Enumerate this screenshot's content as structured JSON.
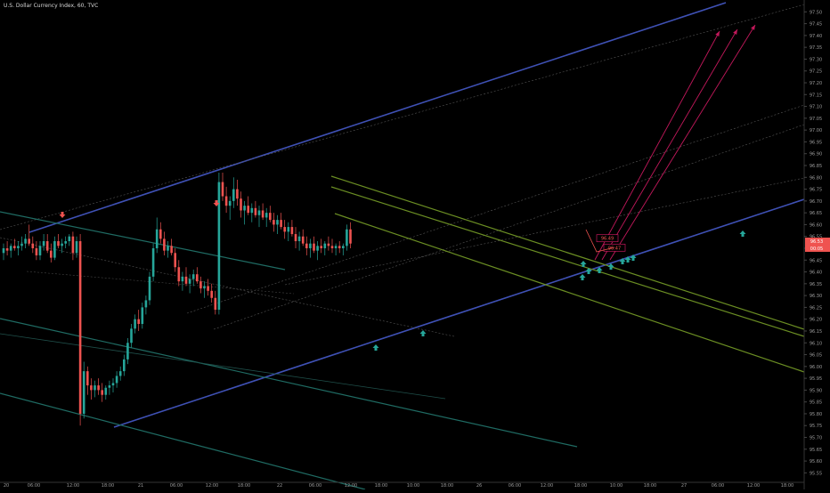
{
  "header": {
    "title": "U.S. Dollar Currency Index, 60, TVC"
  },
  "chart_data": {
    "type": "candlestick",
    "title": "U.S. Dollar Currency Index, 60, TVC",
    "x_ticks": [
      "20",
      "06:00",
      "12:00",
      "18:00",
      "21",
      "06:00",
      "12:00",
      "18:00",
      "22",
      "06:00",
      "12:00",
      "18:00",
      "10:00",
      "18:00",
      "26",
      "06:00",
      "12:00",
      "18:00",
      "10:00",
      "18:00",
      "27",
      "06:00",
      "12:00",
      "18:00"
    ],
    "y_ticks": [
      97.5,
      97.45,
      97.4,
      97.35,
      97.3,
      97.25,
      97.2,
      97.15,
      97.1,
      97.05,
      97.0,
      96.95,
      96.9,
      96.85,
      96.8,
      96.75,
      96.7,
      96.65,
      96.6,
      96.55,
      96.5,
      96.45,
      96.4,
      96.35,
      96.3,
      96.25,
      96.2,
      96.15,
      96.1,
      96.05,
      96.0,
      95.95,
      95.9,
      95.85,
      95.8,
      95.75,
      95.7,
      95.65,
      95.6,
      95.55
    ],
    "ylim": [
      95.51,
      97.52
    ],
    "price_labels": [
      {
        "value": 96.53,
        "text": "96.53",
        "color": "#ef5350"
      },
      {
        "value": 96.5,
        "text": "00:05",
        "color": "#ef5350"
      }
    ],
    "annotations": [
      {
        "text": "96.49",
        "x": 671,
        "y": 96.535
      },
      {
        "text": "96.47",
        "x": 679,
        "y": 96.495
      }
    ],
    "colors": {
      "up": "#26a69a",
      "down": "#ef5350",
      "channel": "#3f51b5",
      "green_channel": "#6b8e23",
      "teal": "#1f6b63",
      "target_arrow": "#c2185b"
    },
    "candles": [
      [
        96.48,
        96.52,
        96.45,
        96.5
      ],
      [
        96.5,
        96.53,
        96.47,
        96.49
      ],
      [
        96.49,
        96.52,
        96.46,
        96.51
      ],
      [
        96.51,
        96.54,
        96.49,
        96.5
      ],
      [
        96.5,
        96.53,
        96.47,
        96.51
      ],
      [
        96.51,
        96.55,
        96.49,
        96.52
      ],
      [
        96.52,
        96.56,
        96.5,
        96.54
      ],
      [
        96.54,
        96.6,
        96.51,
        96.52
      ],
      [
        96.52,
        96.55,
        96.48,
        96.5
      ],
      [
        96.5,
        96.53,
        96.45,
        96.47
      ],
      [
        96.47,
        96.53,
        96.45,
        96.51
      ],
      [
        96.51,
        96.56,
        96.49,
        96.53
      ],
      [
        96.53,
        96.56,
        96.48,
        96.49
      ],
      [
        96.49,
        96.52,
        96.44,
        96.46
      ],
      [
        96.46,
        96.55,
        96.45,
        96.53
      ],
      [
        96.53,
        96.56,
        96.5,
        96.51
      ],
      [
        96.51,
        96.54,
        96.48,
        96.52
      ],
      [
        96.52,
        96.55,
        96.5,
        96.53
      ],
      [
        96.53,
        96.56,
        96.51,
        96.55
      ],
      [
        96.55,
        96.57,
        96.45,
        96.48
      ],
      [
        96.48,
        96.55,
        96.46,
        96.53
      ],
      [
        96.53,
        96.56,
        95.75,
        95.8
      ],
      [
        95.8,
        96.02,
        95.78,
        95.98
      ],
      [
        95.98,
        96.0,
        95.88,
        95.92
      ],
      [
        95.92,
        95.95,
        95.86,
        95.9
      ],
      [
        95.9,
        95.94,
        95.87,
        95.92
      ],
      [
        95.92,
        95.95,
        95.88,
        95.9
      ],
      [
        95.9,
        95.93,
        95.85,
        95.88
      ],
      [
        95.88,
        95.92,
        95.86,
        95.91
      ],
      [
        95.91,
        95.94,
        95.88,
        95.92
      ],
      [
        95.92,
        95.95,
        95.89,
        95.93
      ],
      [
        95.93,
        95.98,
        95.91,
        95.96
      ],
      [
        95.96,
        96.0,
        95.94,
        95.98
      ],
      [
        95.98,
        96.05,
        95.96,
        96.03
      ],
      [
        96.03,
        96.12,
        96.01,
        96.1
      ],
      [
        96.1,
        96.18,
        96.08,
        96.16
      ],
      [
        96.16,
        96.22,
        96.14,
        96.2
      ],
      [
        96.2,
        96.24,
        96.15,
        96.18
      ],
      [
        96.18,
        96.27,
        96.16,
        96.25
      ],
      [
        96.25,
        96.3,
        96.22,
        96.28
      ],
      [
        96.28,
        96.4,
        96.26,
        96.38
      ],
      [
        96.38,
        96.52,
        96.36,
        96.5
      ],
      [
        96.5,
        96.63,
        96.48,
        96.58
      ],
      [
        96.58,
        96.61,
        96.52,
        96.54
      ],
      [
        96.54,
        96.57,
        96.47,
        96.49
      ],
      [
        96.49,
        96.53,
        96.46,
        96.51
      ],
      [
        96.51,
        96.54,
        96.47,
        96.48
      ],
      [
        96.48,
        96.5,
        96.4,
        96.42
      ],
      [
        96.42,
        96.45,
        96.34,
        96.36
      ],
      [
        96.36,
        96.4,
        96.32,
        96.38
      ],
      [
        96.38,
        96.42,
        96.34,
        96.35
      ],
      [
        96.35,
        96.39,
        96.31,
        96.37
      ],
      [
        96.37,
        96.41,
        96.34,
        96.39
      ],
      [
        96.39,
        96.42,
        96.35,
        96.36
      ],
      [
        96.36,
        96.38,
        96.31,
        96.33
      ],
      [
        96.33,
        96.36,
        96.29,
        96.34
      ],
      [
        96.34,
        96.37,
        96.3,
        96.32
      ],
      [
        96.32,
        96.35,
        96.27,
        96.29
      ],
      [
        96.29,
        96.32,
        96.22,
        96.24
      ],
      [
        96.24,
        96.82,
        96.22,
        96.78
      ],
      [
        96.78,
        96.82,
        96.7,
        96.72
      ],
      [
        96.72,
        96.76,
        96.65,
        96.68
      ],
      [
        96.68,
        96.72,
        96.62,
        96.7
      ],
      [
        96.7,
        96.8,
        96.67,
        96.75
      ],
      [
        96.75,
        96.79,
        96.68,
        96.71
      ],
      [
        96.71,
        96.74,
        96.63,
        96.66
      ],
      [
        96.66,
        96.7,
        96.6,
        96.68
      ],
      [
        96.68,
        96.72,
        96.64,
        96.65
      ],
      [
        96.65,
        96.69,
        96.61,
        96.67
      ],
      [
        96.67,
        96.7,
        96.63,
        96.64
      ],
      [
        96.64,
        96.68,
        96.59,
        96.66
      ],
      [
        96.66,
        96.69,
        96.62,
        96.63
      ],
      [
        96.63,
        96.67,
        96.59,
        96.65
      ],
      [
        96.65,
        96.68,
        96.61,
        96.62
      ],
      [
        96.62,
        96.65,
        96.57,
        96.6
      ],
      [
        96.6,
        96.64,
        96.56,
        96.62
      ],
      [
        96.62,
        96.65,
        96.58,
        96.59
      ],
      [
        96.59,
        96.62,
        96.54,
        96.57
      ],
      [
        96.57,
        96.61,
        96.53,
        96.59
      ],
      [
        96.59,
        96.62,
        96.55,
        96.56
      ],
      [
        96.56,
        96.59,
        96.5,
        96.53
      ],
      [
        96.53,
        96.57,
        96.49,
        96.55
      ],
      [
        96.55,
        96.58,
        96.51,
        96.52
      ],
      [
        96.52,
        96.55,
        96.47,
        96.5
      ],
      [
        96.5,
        96.54,
        96.46,
        96.52
      ],
      [
        96.52,
        96.55,
        96.48,
        96.49
      ],
      [
        96.49,
        96.53,
        96.45,
        96.51
      ],
      [
        96.51,
        96.54,
        96.48,
        96.5
      ],
      [
        96.5,
        96.53,
        96.47,
        96.52
      ],
      [
        96.52,
        96.55,
        96.49,
        96.51
      ],
      [
        96.51,
        96.54,
        96.48,
        96.5
      ],
      [
        96.5,
        96.52,
        96.47,
        96.51
      ],
      [
        96.51,
        96.53,
        96.48,
        96.5
      ],
      [
        96.5,
        96.52,
        96.47,
        96.51
      ],
      [
        96.51,
        96.6,
        96.49,
        96.58
      ],
      [
        96.58,
        96.61,
        96.5,
        96.52
      ]
    ]
  }
}
